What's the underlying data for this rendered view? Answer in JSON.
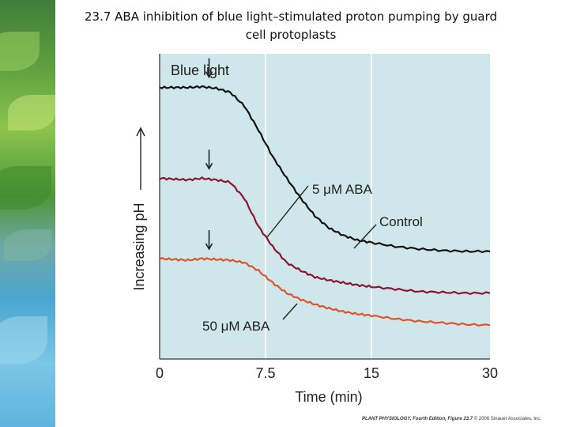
{
  "slide": {
    "title_line1": "23.7 ABA inhibition of blue light–stimulated proton pumping by guard",
    "title_line2": "cell protoplasts",
    "credit_book": "PLANT PHYSIOLOGY, Fourth Edition, Figure 23.7",
    "credit_rest": "© 2006 Sinauer Associates, Inc."
  },
  "colors": {
    "panel_bg": "#cfe7ea",
    "gridline": "#f4fbfb",
    "control": "#111111",
    "aba_5": "#8a1433",
    "aba_50": "#e0532a"
  },
  "chart_data": {
    "type": "line",
    "xlabel": "Time (min)",
    "ylabel": "Increasing pH",
    "xticks": [
      0,
      7.5,
      15,
      30
    ],
    "xlim": [
      0,
      30
    ],
    "x_axis_scale": "linear 0–15 then compressed 15–30",
    "grid": "vertical lines at 7.5 and 15",
    "y_axis_values": "relative (no numeric scale)",
    "arrow_label": "Blue light",
    "arrow_time": 3.5,
    "annotations": [
      "5 μM ABA",
      "Control",
      "50 μM ABA"
    ],
    "series": [
      {
        "name": "Control",
        "x": [
          0,
          1,
          2,
          3,
          4,
          5,
          6,
          7,
          8,
          9,
          10,
          11,
          12,
          13,
          14,
          15,
          18,
          21,
          24,
          27,
          30
        ],
        "y": [
          2.48,
          2.48,
          2.48,
          2.49,
          2.47,
          2.42,
          2.25,
          1.95,
          1.62,
          1.35,
          1.1,
          0.88,
          0.73,
          0.64,
          0.58,
          0.55,
          0.5,
          0.47,
          0.45,
          0.44,
          0.44
        ]
      },
      {
        "name": "5 μM ABA",
        "x": [
          0,
          1,
          2,
          3,
          4,
          5,
          6,
          7,
          8,
          9,
          10,
          11,
          12,
          13,
          14,
          15,
          18,
          21,
          24,
          27,
          30
        ],
        "y": [
          1.35,
          1.34,
          1.33,
          1.35,
          1.33,
          1.3,
          1.1,
          0.75,
          0.5,
          0.3,
          0.2,
          0.12,
          0.08,
          0.05,
          0.02,
          0.0,
          -0.03,
          -0.06,
          -0.07,
          -0.08,
          -0.08
        ]
      },
      {
        "name": "50 μM ABA",
        "x": [
          0,
          1,
          2,
          3,
          4,
          5,
          6,
          7,
          8,
          9,
          10,
          11,
          12,
          13,
          14,
          15,
          18,
          21,
          24,
          27,
          30
        ],
        "y": [
          0.35,
          0.34,
          0.33,
          0.35,
          0.34,
          0.33,
          0.3,
          0.2,
          0.05,
          -0.08,
          -0.16,
          -0.22,
          -0.27,
          -0.31,
          -0.34,
          -0.36,
          -0.4,
          -0.43,
          -0.45,
          -0.47,
          -0.48
        ]
      }
    ]
  }
}
